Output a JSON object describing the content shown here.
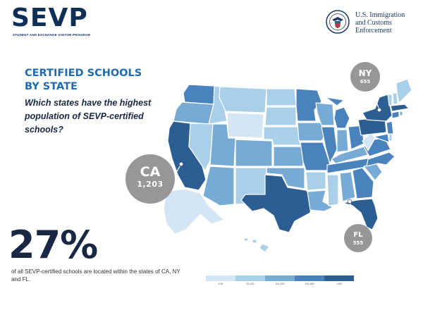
{
  "header": {
    "logo_text": "SEVP",
    "logo_subtitle": "STUDENT AND EXCHANGE VISITOR PROGRAM",
    "agency_line1": "U.S. Immigration",
    "agency_line2": "and Customs",
    "agency_line3": "Enforcement",
    "seal_icon": "dhs-seal-icon"
  },
  "title": {
    "line1": "CERTIFIED SCHOOLS",
    "line2": "BY STATE",
    "question": "Which states have the highest population of SEVP-certified schools?"
  },
  "callouts": {
    "ca": {
      "state": "CA",
      "count": "1,203"
    },
    "ny": {
      "state": "NY",
      "count": "655"
    },
    "fl": {
      "state": "FL",
      "count": "555"
    }
  },
  "stat": {
    "percent": "27%",
    "caption": "of all SEVP-certified schools are located within the states of CA, NY and FL."
  },
  "legend": {
    "bins": [
      {
        "label": "0-50",
        "color": "#d4e6f4"
      },
      {
        "label": "51-100",
        "color": "#a9cfe9"
      },
      {
        "label": "101-200",
        "color": "#77abd5"
      },
      {
        "label": "201-400",
        "color": "#4a82bd"
      },
      {
        "label": ">400",
        "color": "#2c5e93"
      }
    ]
  },
  "colors": {
    "map_stroke": "#ffffff",
    "ocean_accent": "#1d6bb3",
    "callout_bg": "#979797",
    "marker": "#ffffff"
  }
}
